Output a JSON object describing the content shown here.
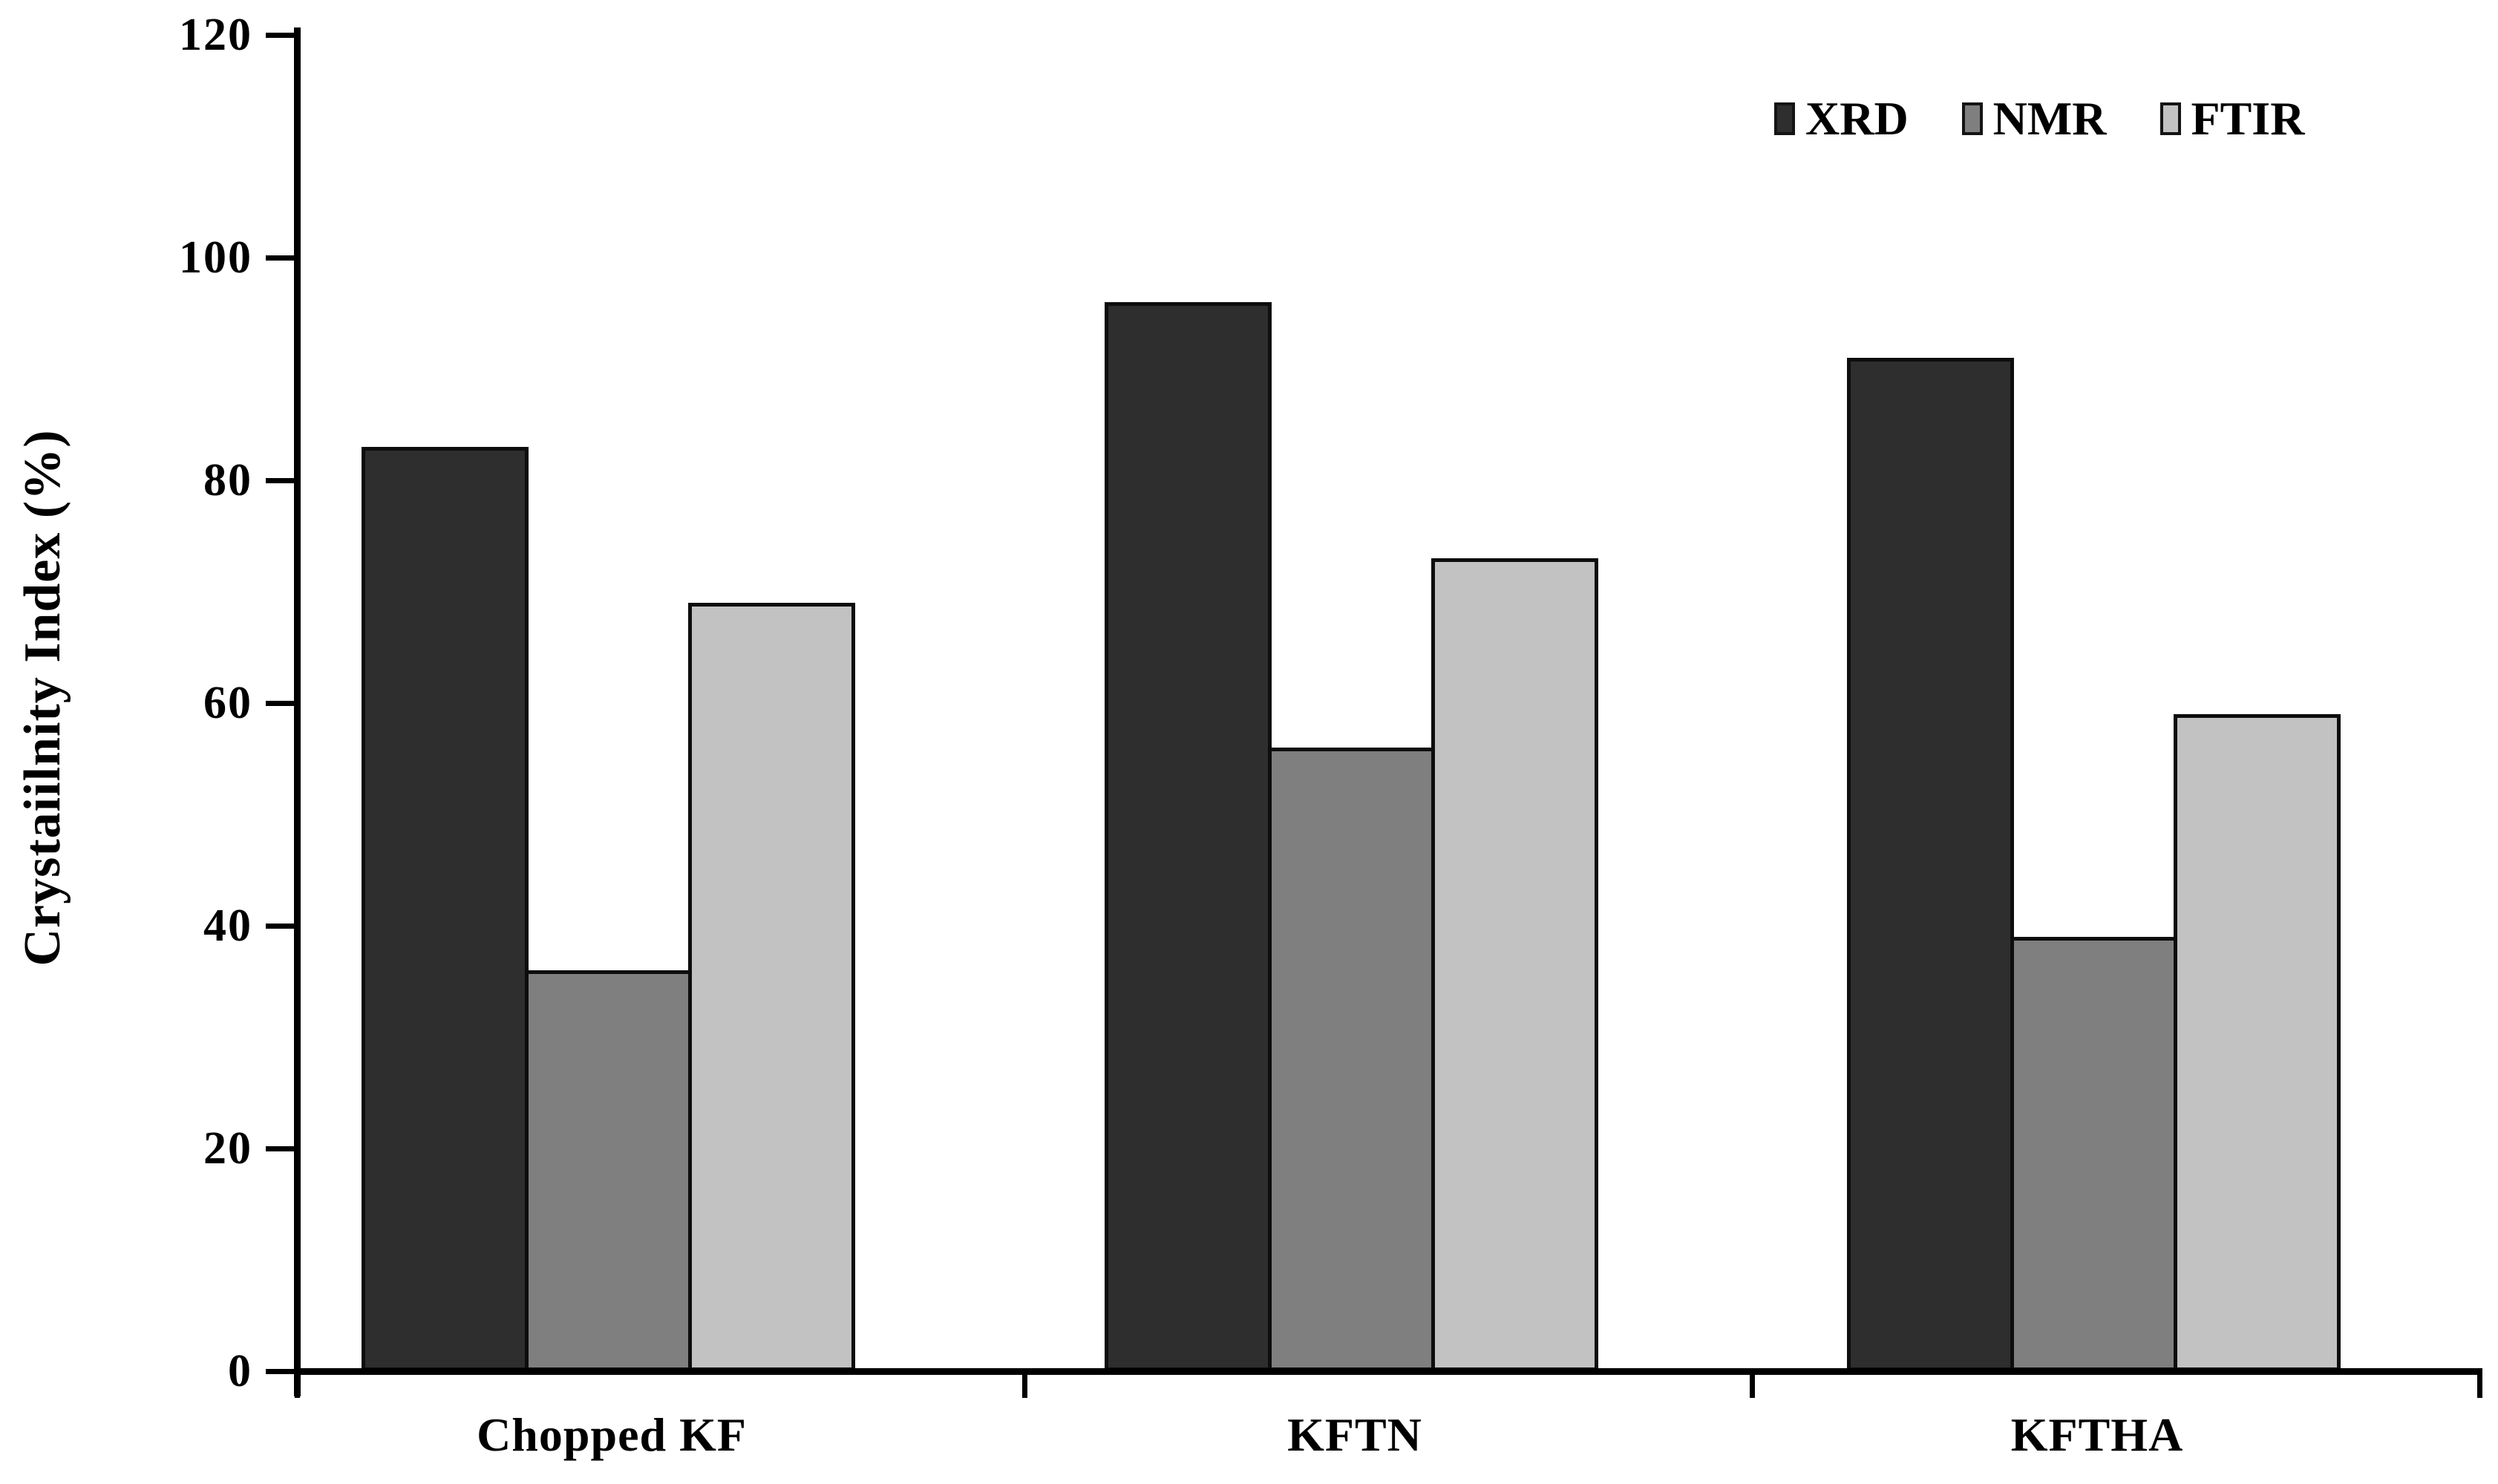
{
  "chart_data": {
    "type": "bar",
    "title": "",
    "xlabel": "",
    "ylabel": "Crystaiilnity Index (%)",
    "categories": [
      "Chopped KF",
      "KFTN",
      "KFTHA"
    ],
    "series": [
      {
        "name": "XRD",
        "color": "#2e2e2e",
        "values": [
          83,
          96,
          91
        ]
      },
      {
        "name": "NMR",
        "color": "#7f7f7f",
        "values": [
          36,
          56,
          39
        ]
      },
      {
        "name": "FTIR",
        "color": "#c2c2c2",
        "values": [
          69,
          73,
          59
        ]
      }
    ],
    "ylim": [
      0,
      120
    ],
    "yticks": [
      0,
      20,
      40,
      60,
      80,
      100,
      120
    ],
    "grid": false,
    "legend_position": "top-right",
    "axis_color": "#000000",
    "bar_border_color": "#0d0d0d"
  }
}
